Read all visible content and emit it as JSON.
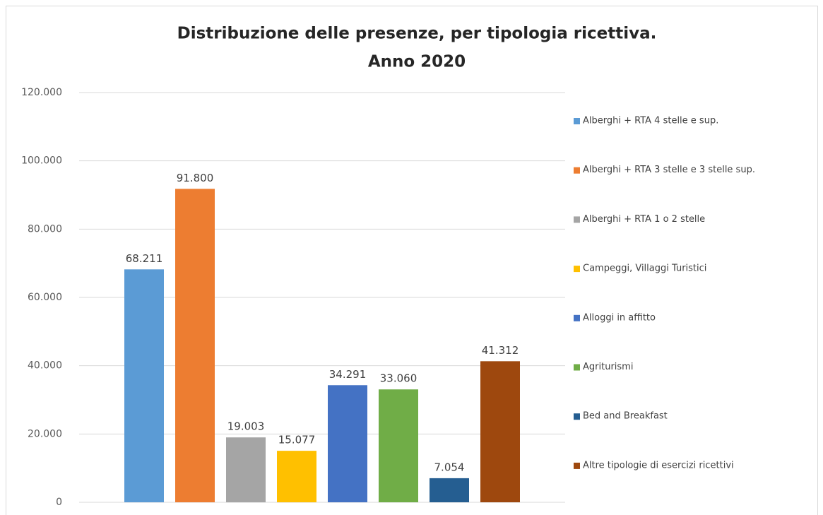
{
  "chart_data": {
    "type": "bar",
    "title": [
      "Distribuzione delle presenze, per tipologia ricettiva.",
      "Anno 2020"
    ],
    "categories": [
      null
    ],
    "series": [
      {
        "name": "Alberghi + RTA 4 stelle e sup.",
        "color": "#5b9bd5",
        "values": [
          68211
        ],
        "value_labels": [
          "68.211"
        ]
      },
      {
        "name": "Alberghi + RTA 3 stelle e 3 stelle sup.",
        "color": "#ed7d31",
        "values": [
          91800
        ],
        "value_labels": [
          "91.800"
        ]
      },
      {
        "name": "Alberghi + RTA 1 o 2 stelle",
        "color": "#a5a5a5",
        "values": [
          19003
        ],
        "value_labels": [
          "19.003"
        ]
      },
      {
        "name": "Campeggi, Villaggi Turistici",
        "color": "#ffc000",
        "values": [
          15077
        ],
        "value_labels": [
          "15.077"
        ]
      },
      {
        "name": "Alloggi in affitto",
        "color": "#4472c4",
        "values": [
          34291
        ],
        "value_labels": [
          "34.291"
        ]
      },
      {
        "name": "Agriturismi",
        "color": "#70ad47",
        "values": [
          33060
        ],
        "value_labels": [
          "33.060"
        ]
      },
      {
        "name": "Bed and Breakfast",
        "color": "#255e91",
        "values": [
          7054
        ],
        "value_labels": [
          "7.054"
        ]
      },
      {
        "name": "Altre tipologie di esercizi ricettivi",
        "color": "#9e480e",
        "values": [
          41312
        ],
        "value_labels": [
          "41.312"
        ]
      }
    ],
    "ylim": [
      0,
      120000
    ],
    "yticks": [
      0,
      {
        "value": 20000,
        "label": "20.000"
      },
      {
        "value": 40000,
        "label": "40.000"
      },
      {
        "value": 60000,
        "label": "60.000"
      },
      {
        "value": 80000,
        "label": "80.000"
      },
      {
        "value": 100000,
        "label": "100.000"
      },
      {
        "value": 120000,
        "label": "120.000"
      }
    ],
    "grid": true,
    "legend": "right"
  }
}
